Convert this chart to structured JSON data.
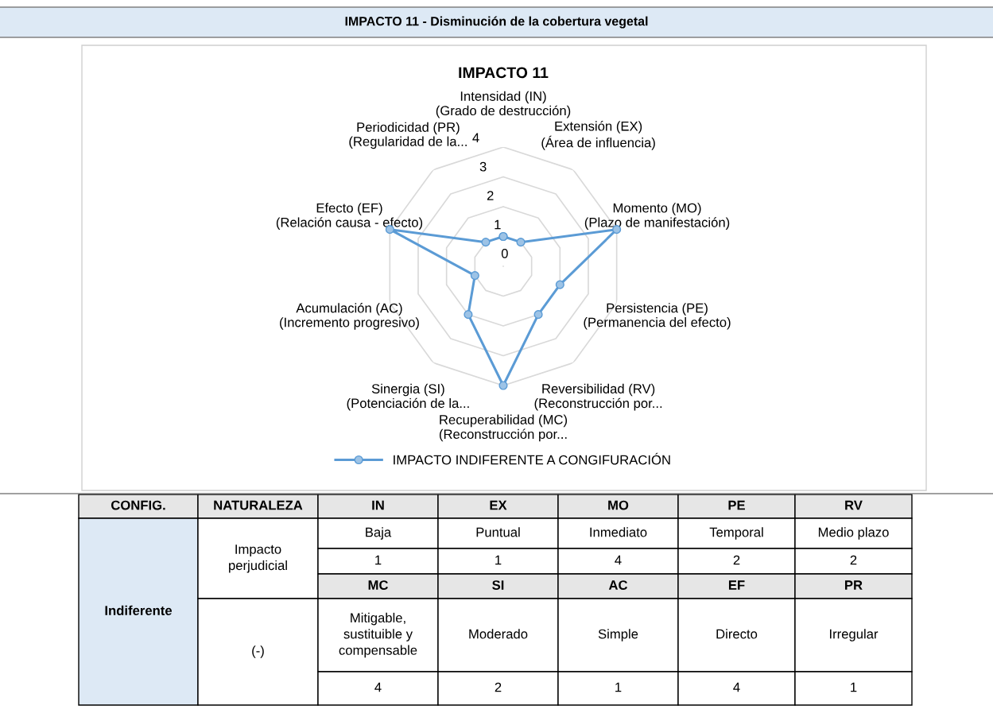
{
  "chart_data": {
    "type": "radar",
    "title": "IMPACTO 11 - Disminución de la cobertura vegetal",
    "subtitle": "IMPACTO 11",
    "categories": [
      "Intensidad (IN)\n(Grado de destrucción)",
      "Extensión (EX)\n(Área de influencia)",
      "Momento (MO)\n(Plazo de manifestación)",
      "Persistencia (PE)\n(Permanencia del efecto)",
      "Reversibilidad (RV)\n(Reconstrucción por...",
      "Recuperabilidad (MC)\n(Reconstrucción por...",
      "Sinergia (SI)\n(Potenciación de la...",
      "Acumulación (AC)\n(Incremento progresivo)",
      "Efecto (EF)\n(Relación causa - efecto)",
      "Periodicidad (PR)\n(Regularidad de la..."
    ],
    "series": [
      {
        "name": "IMPACTO INDIFERENTE A CONGIFURACIÓN",
        "color": "#5b9bd5",
        "values": [
          1,
          1,
          4,
          2,
          2,
          4,
          2,
          1,
          4,
          1
        ]
      }
    ],
    "ylim": [
      0,
      4
    ],
    "yticks": [
      0,
      1,
      2,
      3,
      4
    ],
    "grid": true,
    "legend": "bottom",
    "marker": "circle",
    "line_style": "solid",
    "annotations": [
      "CONFIG.",
      "NATURALEZA",
      "Indiferente",
      "Impacto\nperjudicial",
      "(-)",
      "IN",
      "EX",
      "MO",
      "PE",
      "RV",
      "MC",
      "SI",
      "AC",
      "EF",
      "PR",
      "Baja",
      "Puntual",
      "Inmediato",
      "Temporal",
      "Medio plazo",
      "Mitigable,\nsustituible y\ncompensable",
      "Moderado",
      "Simple",
      "Directo",
      "Irregular",
      "1",
      "1",
      "4",
      "2",
      "2",
      "4",
      "2",
      "1",
      "4",
      "1"
    ]
  }
}
